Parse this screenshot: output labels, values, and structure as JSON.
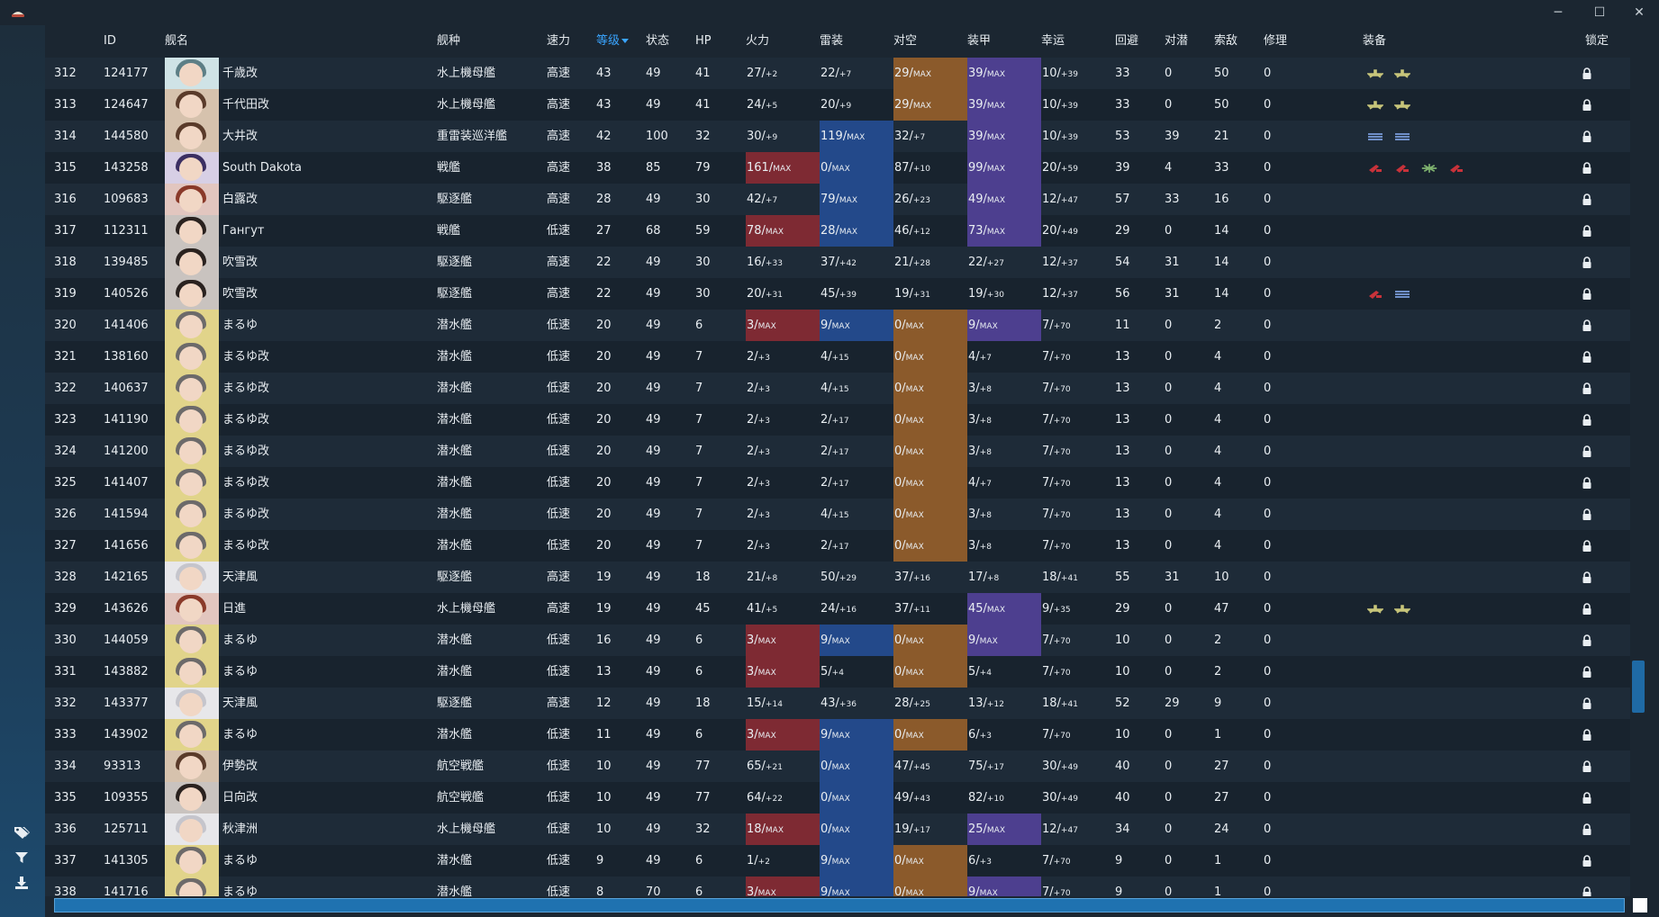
{
  "window": {
    "app_icon": "hat-logo-icon",
    "minimize": "─",
    "maximize": "☐",
    "close": "✕"
  },
  "sidebar": {
    "icons": [
      "tag-icon",
      "filter-icon",
      "download-icon"
    ]
  },
  "columns": {
    "no": "",
    "id": "ID",
    "name": "舰名",
    "type": "舰种",
    "speed": "速力",
    "level": "等级",
    "cond": "状态",
    "hp": "HP",
    "fire": "火力",
    "torp": "雷装",
    "aa": "对空",
    "armor": "装甲",
    "luck": "幸运",
    "evasion": "回避",
    "asw": "对潜",
    "los": "索敌",
    "repair": "修理",
    "equip": "装备",
    "lock": "锁定"
  },
  "colors": {
    "fire_max": "#7e2a33",
    "torp_max": "#23498a",
    "aa_max": "#8b5a2b",
    "armor_max": "#4d3f8f",
    "sort_accent": "#3aa5ff"
  },
  "rows": [
    {
      "no": "312",
      "id": "124177",
      "name": "千歳改",
      "type": "水上機母艦",
      "speed": "高速",
      "level": "43",
      "cond": "49",
      "hp": "41",
      "fire": "27/",
      "fire_s": "+2",
      "fire_max": false,
      "torp": "22/",
      "torp_s": "+7",
      "torp_max": false,
      "aa": "29/",
      "aa_s": "MAX",
      "aa_max": true,
      "armor": "39/",
      "armor_s": "MAX",
      "armor_max": true,
      "luck": "10/",
      "luck_s": "+39",
      "evasion": "33",
      "asw": "0",
      "los": "50",
      "repair": "0",
      "equip": [
        "seaplane-icon",
        "seaplane-icon"
      ],
      "avatar": "teal"
    },
    {
      "no": "313",
      "id": "124647",
      "name": "千代田改",
      "type": "水上機母艦",
      "speed": "高速",
      "level": "43",
      "cond": "49",
      "hp": "41",
      "fire": "24/",
      "fire_s": "+5",
      "fire_max": false,
      "torp": "20/",
      "torp_s": "+9",
      "torp_max": false,
      "aa": "29/",
      "aa_s": "MAX",
      "aa_max": true,
      "armor": "39/",
      "armor_s": "MAX",
      "armor_max": true,
      "luck": "10/",
      "luck_s": "+39",
      "evasion": "33",
      "asw": "0",
      "los": "50",
      "repair": "0",
      "equip": [
        "seaplane-icon",
        "seaplane-icon"
      ],
      "avatar": "brown"
    },
    {
      "no": "314",
      "id": "144580",
      "name": "大井改",
      "type": "重雷装巡洋艦",
      "speed": "高速",
      "level": "42",
      "cond": "100",
      "hp": "32",
      "fire": "30/",
      "fire_s": "+9",
      "fire_max": false,
      "torp": "119/",
      "torp_s": "MAX",
      "torp_max": true,
      "aa": "32/",
      "aa_s": "+7",
      "aa_max": false,
      "armor": "39/",
      "armor_s": "MAX",
      "armor_max": true,
      "luck": "10/",
      "luck_s": "+39",
      "evasion": "53",
      "asw": "39",
      "los": "21",
      "repair": "0",
      "equip": [
        "torpedo-icon",
        "torpedo-icon"
      ],
      "avatar": "brown"
    },
    {
      "no": "315",
      "id": "143258",
      "name": "South Dakota",
      "type": "戦艦",
      "speed": "高速",
      "level": "38",
      "cond": "85",
      "hp": "79",
      "fire": "161/",
      "fire_s": "MAX",
      "fire_max": true,
      "torp": "0/",
      "torp_s": "MAX",
      "torp_max": true,
      "aa": "87/",
      "aa_s": "+10",
      "aa_max": false,
      "armor": "99/",
      "armor_s": "MAX",
      "armor_max": true,
      "luck": "20/",
      "luck_s": "+59",
      "evasion": "39",
      "asw": "4",
      "los": "33",
      "repair": "0",
      "equip": [
        "main-gun-icon",
        "main-gun-icon",
        "radar-icon",
        "main-gun-icon"
      ],
      "avatar": "purple"
    },
    {
      "no": "316",
      "id": "109683",
      "name": "白露改",
      "type": "駆逐艦",
      "speed": "高速",
      "level": "28",
      "cond": "49",
      "hp": "30",
      "fire": "42/",
      "fire_s": "+7",
      "fire_max": false,
      "torp": "79/",
      "torp_s": "MAX",
      "torp_max": true,
      "aa": "26/",
      "aa_s": "+23",
      "aa_max": false,
      "armor": "49/",
      "armor_s": "MAX",
      "armor_max": true,
      "luck": "12/",
      "luck_s": "+47",
      "evasion": "57",
      "asw": "33",
      "los": "16",
      "repair": "0",
      "equip": [],
      "avatar": "red"
    },
    {
      "no": "317",
      "id": "112311",
      "name": "Гангут",
      "type": "戦艦",
      "speed": "低速",
      "level": "27",
      "cond": "68",
      "hp": "59",
      "fire": "78/",
      "fire_s": "MAX",
      "fire_max": true,
      "torp": "28/",
      "torp_s": "MAX",
      "torp_max": true,
      "aa": "46/",
      "aa_s": "+12",
      "aa_max": false,
      "armor": "73/",
      "armor_s": "MAX",
      "armor_max": true,
      "luck": "20/",
      "luck_s": "+49",
      "evasion": "29",
      "asw": "0",
      "los": "14",
      "repair": "0",
      "equip": [],
      "avatar": "dark"
    },
    {
      "no": "318",
      "id": "139485",
      "name": "吹雪改",
      "type": "駆逐艦",
      "speed": "高速",
      "level": "22",
      "cond": "49",
      "hp": "30",
      "fire": "16/",
      "fire_s": "+33",
      "fire_max": false,
      "torp": "37/",
      "torp_s": "+42",
      "torp_max": false,
      "aa": "21/",
      "aa_s": "+28",
      "aa_max": false,
      "armor": "22/",
      "armor_s": "+27",
      "armor_max": false,
      "luck": "12/",
      "luck_s": "+37",
      "evasion": "54",
      "asw": "31",
      "los": "14",
      "repair": "0",
      "equip": [],
      "avatar": "dark"
    },
    {
      "no": "319",
      "id": "140526",
      "name": "吹雪改",
      "type": "駆逐艦",
      "speed": "高速",
      "level": "22",
      "cond": "49",
      "hp": "30",
      "fire": "20/",
      "fire_s": "+31",
      "fire_max": false,
      "torp": "45/",
      "torp_s": "+39",
      "torp_max": false,
      "aa": "19/",
      "aa_s": "+31",
      "aa_max": false,
      "armor": "19/",
      "armor_s": "+30",
      "armor_max": false,
      "luck": "12/",
      "luck_s": "+37",
      "evasion": "56",
      "asw": "31",
      "los": "14",
      "repair": "0",
      "equip": [
        "main-gun-icon",
        "torpedo-icon"
      ],
      "avatar": "dark"
    },
    {
      "no": "320",
      "id": "141406",
      "name": "まるゆ",
      "type": "潜水艦",
      "speed": "低速",
      "level": "20",
      "cond": "49",
      "hp": "6",
      "fire": "3/",
      "fire_s": "MAX",
      "fire_max": true,
      "torp": "9/",
      "torp_s": "MAX",
      "torp_max": true,
      "aa": "0/",
      "aa_s": "MAX",
      "aa_max": true,
      "armor": "9/",
      "armor_s": "MAX",
      "armor_max": true,
      "luck": "7/",
      "luck_s": "+70",
      "evasion": "11",
      "asw": "0",
      "los": "2",
      "repair": "0",
      "equip": [],
      "avatar": "maruyu"
    },
    {
      "no": "321",
      "id": "138160",
      "name": "まるゆ改",
      "type": "潜水艦",
      "speed": "低速",
      "level": "20",
      "cond": "49",
      "hp": "7",
      "fire": "2/",
      "fire_s": "+3",
      "fire_max": false,
      "torp": "4/",
      "torp_s": "+15",
      "torp_max": false,
      "aa": "0/",
      "aa_s": "MAX",
      "aa_max": true,
      "armor": "4/",
      "armor_s": "+7",
      "armor_max": false,
      "luck": "7/",
      "luck_s": "+70",
      "evasion": "13",
      "asw": "0",
      "los": "4",
      "repair": "0",
      "equip": [],
      "avatar": "maruyu"
    },
    {
      "no": "322",
      "id": "140637",
      "name": "まるゆ改",
      "type": "潜水艦",
      "speed": "低速",
      "level": "20",
      "cond": "49",
      "hp": "7",
      "fire": "2/",
      "fire_s": "+3",
      "fire_max": false,
      "torp": "4/",
      "torp_s": "+15",
      "torp_max": false,
      "aa": "0/",
      "aa_s": "MAX",
      "aa_max": true,
      "armor": "3/",
      "armor_s": "+8",
      "armor_max": false,
      "luck": "7/",
      "luck_s": "+70",
      "evasion": "13",
      "asw": "0",
      "los": "4",
      "repair": "0",
      "equip": [],
      "avatar": "maruyu"
    },
    {
      "no": "323",
      "id": "141190",
      "name": "まるゆ改",
      "type": "潜水艦",
      "speed": "低速",
      "level": "20",
      "cond": "49",
      "hp": "7",
      "fire": "2/",
      "fire_s": "+3",
      "fire_max": false,
      "torp": "2/",
      "torp_s": "+17",
      "torp_max": false,
      "aa": "0/",
      "aa_s": "MAX",
      "aa_max": true,
      "armor": "3/",
      "armor_s": "+8",
      "armor_max": false,
      "luck": "7/",
      "luck_s": "+70",
      "evasion": "13",
      "asw": "0",
      "los": "4",
      "repair": "0",
      "equip": [],
      "avatar": "maruyu"
    },
    {
      "no": "324",
      "id": "141200",
      "name": "まるゆ改",
      "type": "潜水艦",
      "speed": "低速",
      "level": "20",
      "cond": "49",
      "hp": "7",
      "fire": "2/",
      "fire_s": "+3",
      "fire_max": false,
      "torp": "2/",
      "torp_s": "+17",
      "torp_max": false,
      "aa": "0/",
      "aa_s": "MAX",
      "aa_max": true,
      "armor": "3/",
      "armor_s": "+8",
      "armor_max": false,
      "luck": "7/",
      "luck_s": "+70",
      "evasion": "13",
      "asw": "0",
      "los": "4",
      "repair": "0",
      "equip": [],
      "avatar": "maruyu"
    },
    {
      "no": "325",
      "id": "141407",
      "name": "まるゆ改",
      "type": "潜水艦",
      "speed": "低速",
      "level": "20",
      "cond": "49",
      "hp": "7",
      "fire": "2/",
      "fire_s": "+3",
      "fire_max": false,
      "torp": "2/",
      "torp_s": "+17",
      "torp_max": false,
      "aa": "0/",
      "aa_s": "MAX",
      "aa_max": true,
      "armor": "4/",
      "armor_s": "+7",
      "armor_max": false,
      "luck": "7/",
      "luck_s": "+70",
      "evasion": "13",
      "asw": "0",
      "los": "4",
      "repair": "0",
      "equip": [],
      "avatar": "maruyu"
    },
    {
      "no": "326",
      "id": "141594",
      "name": "まるゆ改",
      "type": "潜水艦",
      "speed": "低速",
      "level": "20",
      "cond": "49",
      "hp": "7",
      "fire": "2/",
      "fire_s": "+3",
      "fire_max": false,
      "torp": "4/",
      "torp_s": "+15",
      "torp_max": false,
      "aa": "0/",
      "aa_s": "MAX",
      "aa_max": true,
      "armor": "3/",
      "armor_s": "+8",
      "armor_max": false,
      "luck": "7/",
      "luck_s": "+70",
      "evasion": "13",
      "asw": "0",
      "los": "4",
      "repair": "0",
      "equip": [],
      "avatar": "maruyu"
    },
    {
      "no": "327",
      "id": "141656",
      "name": "まるゆ改",
      "type": "潜水艦",
      "speed": "低速",
      "level": "20",
      "cond": "49",
      "hp": "7",
      "fire": "2/",
      "fire_s": "+3",
      "fire_max": false,
      "torp": "2/",
      "torp_s": "+17",
      "torp_max": false,
      "aa": "0/",
      "aa_s": "MAX",
      "aa_max": true,
      "armor": "3/",
      "armor_s": "+8",
      "armor_max": false,
      "luck": "7/",
      "luck_s": "+70",
      "evasion": "13",
      "asw": "0",
      "los": "4",
      "repair": "0",
      "equip": [],
      "avatar": "maruyu"
    },
    {
      "no": "328",
      "id": "142165",
      "name": "天津風",
      "type": "駆逐艦",
      "speed": "高速",
      "level": "19",
      "cond": "49",
      "hp": "18",
      "fire": "21/",
      "fire_s": "+8",
      "fire_max": false,
      "torp": "50/",
      "torp_s": "+29",
      "torp_max": false,
      "aa": "37/",
      "aa_s": "+16",
      "aa_max": false,
      "armor": "17/",
      "armor_s": "+8",
      "armor_max": false,
      "luck": "18/",
      "luck_s": "+41",
      "evasion": "55",
      "asw": "31",
      "los": "10",
      "repair": "0",
      "equip": [],
      "avatar": "silver"
    },
    {
      "no": "329",
      "id": "143626",
      "name": "日進",
      "type": "水上機母艦",
      "speed": "高速",
      "level": "19",
      "cond": "49",
      "hp": "45",
      "fire": "41/",
      "fire_s": "+5",
      "fire_max": false,
      "torp": "24/",
      "torp_s": "+16",
      "torp_max": false,
      "aa": "37/",
      "aa_s": "+11",
      "aa_max": false,
      "armor": "45/",
      "armor_s": "MAX",
      "armor_max": true,
      "luck": "9/",
      "luck_s": "+35",
      "evasion": "29",
      "asw": "0",
      "los": "47",
      "repair": "0",
      "equip": [
        "seaplane-icon",
        "seaplane-icon"
      ],
      "avatar": "red"
    },
    {
      "no": "330",
      "id": "144059",
      "name": "まるゆ",
      "type": "潜水艦",
      "speed": "低速",
      "level": "16",
      "cond": "49",
      "hp": "6",
      "fire": "3/",
      "fire_s": "MAX",
      "fire_max": true,
      "torp": "9/",
      "torp_s": "MAX",
      "torp_max": true,
      "aa": "0/",
      "aa_s": "MAX",
      "aa_max": true,
      "armor": "9/",
      "armor_s": "MAX",
      "armor_max": true,
      "luck": "7/",
      "luck_s": "+70",
      "evasion": "10",
      "asw": "0",
      "los": "2",
      "repair": "0",
      "equip": [],
      "avatar": "maruyu"
    },
    {
      "no": "331",
      "id": "143882",
      "name": "まるゆ",
      "type": "潜水艦",
      "speed": "低速",
      "level": "13",
      "cond": "49",
      "hp": "6",
      "fire": "3/",
      "fire_s": "MAX",
      "fire_max": true,
      "torp": "5/",
      "torp_s": "+4",
      "torp_max": false,
      "aa": "0/",
      "aa_s": "MAX",
      "aa_max": true,
      "armor": "5/",
      "armor_s": "+4",
      "armor_max": false,
      "luck": "7/",
      "luck_s": "+70",
      "evasion": "10",
      "asw": "0",
      "los": "2",
      "repair": "0",
      "equip": [],
      "avatar": "maruyu"
    },
    {
      "no": "332",
      "id": "143377",
      "name": "天津風",
      "type": "駆逐艦",
      "speed": "高速",
      "level": "12",
      "cond": "49",
      "hp": "18",
      "fire": "15/",
      "fire_s": "+14",
      "fire_max": false,
      "torp": "43/",
      "torp_s": "+36",
      "torp_max": false,
      "aa": "28/",
      "aa_s": "+25",
      "aa_max": false,
      "armor": "13/",
      "armor_s": "+12",
      "armor_max": false,
      "luck": "18/",
      "luck_s": "+41",
      "evasion": "52",
      "asw": "29",
      "los": "9",
      "repair": "0",
      "equip": [],
      "avatar": "silver"
    },
    {
      "no": "333",
      "id": "143902",
      "name": "まるゆ",
      "type": "潜水艦",
      "speed": "低速",
      "level": "11",
      "cond": "49",
      "hp": "6",
      "fire": "3/",
      "fire_s": "MAX",
      "fire_max": true,
      "torp": "9/",
      "torp_s": "MAX",
      "torp_max": true,
      "aa": "0/",
      "aa_s": "MAX",
      "aa_max": true,
      "armor": "6/",
      "armor_s": "+3",
      "armor_max": false,
      "luck": "7/",
      "luck_s": "+70",
      "evasion": "10",
      "asw": "0",
      "los": "1",
      "repair": "0",
      "equip": [],
      "avatar": "maruyu"
    },
    {
      "no": "334",
      "id": "93313",
      "name": "伊勢改",
      "type": "航空戦艦",
      "speed": "低速",
      "level": "10",
      "cond": "49",
      "hp": "77",
      "fire": "65/",
      "fire_s": "+21",
      "fire_max": false,
      "torp": "0/",
      "torp_s": "MAX",
      "torp_max": true,
      "aa": "47/",
      "aa_s": "+45",
      "aa_max": false,
      "armor": "75/",
      "armor_s": "+17",
      "armor_max": false,
      "luck": "30/",
      "luck_s": "+49",
      "evasion": "40",
      "asw": "0",
      "los": "27",
      "repair": "0",
      "equip": [],
      "avatar": "brown"
    },
    {
      "no": "335",
      "id": "109355",
      "name": "日向改",
      "type": "航空戦艦",
      "speed": "低速",
      "level": "10",
      "cond": "49",
      "hp": "77",
      "fire": "64/",
      "fire_s": "+22",
      "fire_max": false,
      "torp": "0/",
      "torp_s": "MAX",
      "torp_max": true,
      "aa": "49/",
      "aa_s": "+43",
      "aa_max": false,
      "armor": "82/",
      "armor_s": "+10",
      "armor_max": false,
      "luck": "30/",
      "luck_s": "+49",
      "evasion": "40",
      "asw": "0",
      "los": "27",
      "repair": "0",
      "equip": [],
      "avatar": "dark"
    },
    {
      "no": "336",
      "id": "125711",
      "name": "秋津洲",
      "type": "水上機母艦",
      "speed": "低速",
      "level": "10",
      "cond": "49",
      "hp": "32",
      "fire": "18/",
      "fire_s": "MAX",
      "fire_max": true,
      "torp": "0/",
      "torp_s": "MAX",
      "torp_max": true,
      "aa": "19/",
      "aa_s": "+17",
      "aa_max": false,
      "armor": "25/",
      "armor_s": "MAX",
      "armor_max": true,
      "luck": "12/",
      "luck_s": "+47",
      "evasion": "34",
      "asw": "0",
      "los": "24",
      "repair": "0",
      "equip": [],
      "avatar": "silver"
    },
    {
      "no": "337",
      "id": "141305",
      "name": "まるゆ",
      "type": "潜水艦",
      "speed": "低速",
      "level": "9",
      "cond": "49",
      "hp": "6",
      "fire": "1/",
      "fire_s": "+2",
      "fire_max": false,
      "torp": "9/",
      "torp_s": "MAX",
      "torp_max": true,
      "aa": "0/",
      "aa_s": "MAX",
      "aa_max": true,
      "armor": "6/",
      "armor_s": "+3",
      "armor_max": false,
      "luck": "7/",
      "luck_s": "+70",
      "evasion": "9",
      "asw": "0",
      "los": "1",
      "repair": "0",
      "equip": [],
      "avatar": "maruyu"
    },
    {
      "no": "338",
      "id": "141716",
      "name": "まるゆ",
      "type": "潜水艦",
      "speed": "低速",
      "level": "8",
      "cond": "70",
      "hp": "6",
      "fire": "3/",
      "fire_s": "MAX",
      "fire_max": true,
      "torp": "9/",
      "torp_s": "MAX",
      "torp_max": true,
      "aa": "0/",
      "aa_s": "MAX",
      "aa_max": true,
      "armor": "9/",
      "armor_s": "MAX",
      "armor_max": true,
      "luck": "7/",
      "luck_s": "+70",
      "evasion": "9",
      "asw": "0",
      "los": "1",
      "repair": "0",
      "equip": [],
      "avatar": "maruyu"
    }
  ]
}
